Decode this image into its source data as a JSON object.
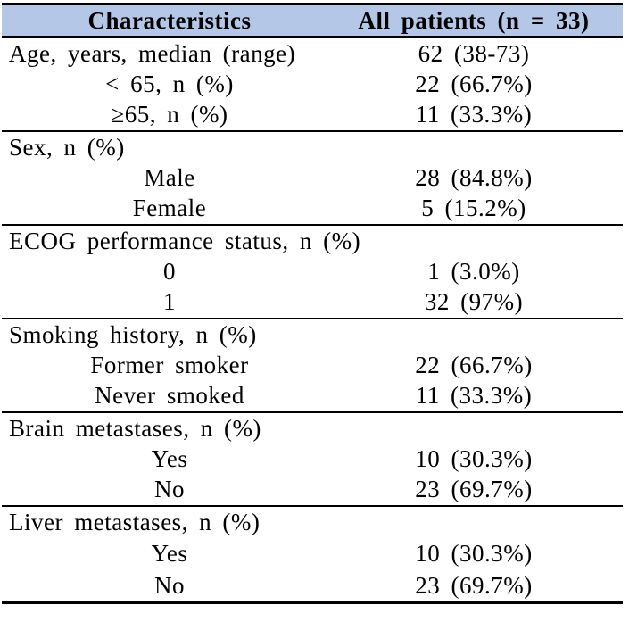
{
  "colors": {
    "header_bg": "#b4c7e7",
    "rule_color": "#000000",
    "text_color": "#000000"
  },
  "table": {
    "header": {
      "col1": "Characteristics",
      "col2": "All patients (n = 33)"
    },
    "sections": [
      {
        "rows": [
          {
            "label": "Age, years, median (range)",
            "value": "62 (38-73)",
            "align": "left"
          },
          {
            "label": "< 65, n (%)",
            "value": "22 (66.7%)",
            "align": "center"
          },
          {
            "label": "≥65, n (%)",
            "value": "11 (33.3%)",
            "align": "center"
          }
        ]
      },
      {
        "rows": [
          {
            "label": "Sex, n (%)",
            "value": "",
            "align": "left"
          },
          {
            "label": "Male",
            "value": "28 (84.8%)",
            "align": "center"
          },
          {
            "label": "Female",
            "value": "5 (15.2%)",
            "align": "center"
          }
        ]
      },
      {
        "rows": [
          {
            "label": "ECOG performance status, n (%)",
            "value": "",
            "align": "left"
          },
          {
            "label": "0",
            "value": "1 (3.0%)",
            "align": "center"
          },
          {
            "label": "1",
            "value": "32 (97%)",
            "align": "center"
          }
        ]
      },
      {
        "rows": [
          {
            "label": "Smoking history, n (%)",
            "value": "",
            "align": "left"
          },
          {
            "label": "Former smoker",
            "value": "22 (66.7%)",
            "align": "center"
          },
          {
            "label": "Never smoked",
            "value": "11 (33.3%)",
            "align": "center"
          }
        ]
      },
      {
        "rows": [
          {
            "label": "Brain metastases, n (%)",
            "value": "",
            "align": "left"
          },
          {
            "label": "Yes",
            "value": "10 (30.3%)",
            "align": "center"
          },
          {
            "label": "No",
            "value": "23 (69.7%)",
            "align": "center"
          }
        ]
      },
      {
        "rows": [
          {
            "label": "Liver metastases, n (%)",
            "value": "",
            "align": "left"
          },
          {
            "label": "Yes",
            "value": "10 (30.3%)",
            "align": "center"
          },
          {
            "label": "No",
            "value": "23 (69.7%)",
            "align": "center"
          }
        ]
      }
    ]
  }
}
